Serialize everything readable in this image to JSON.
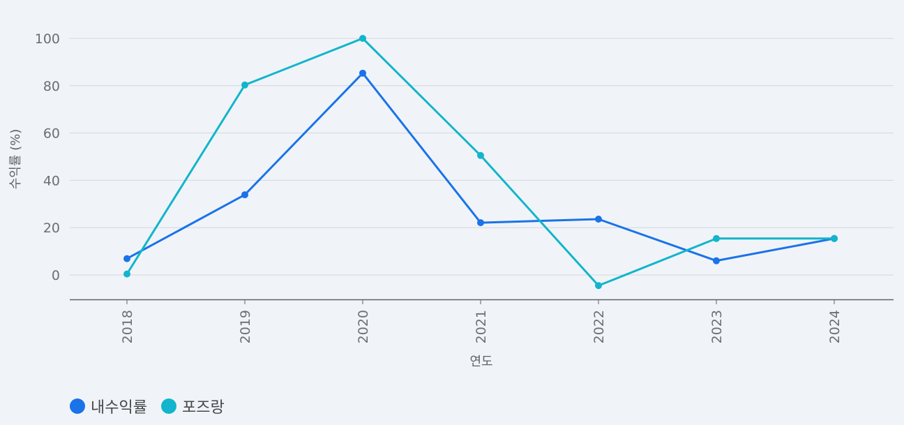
{
  "chart_data": {
    "type": "line",
    "xlabel": "연도",
    "ylabel": "수익률 (%)",
    "x": [
      "2018",
      "2019",
      "2020",
      "2021",
      "2022",
      "2023",
      "2024"
    ],
    "ylim": [
      -10,
      100
    ],
    "yticks": [
      0,
      20,
      40,
      60,
      80,
      100
    ],
    "grid": true,
    "legend_position": "bottom-left",
    "series": [
      {
        "name": "내수익률",
        "color": "#1a73e8",
        "values": [
          6.9,
          33.9,
          85.3,
          22.1,
          23.6,
          6.0,
          15.4
        ]
      },
      {
        "name": "포즈랑",
        "color": "#12b5cb",
        "values": [
          0.4,
          80.3,
          100.0,
          50.5,
          -4.5,
          15.4,
          15.4
        ]
      }
    ]
  }
}
